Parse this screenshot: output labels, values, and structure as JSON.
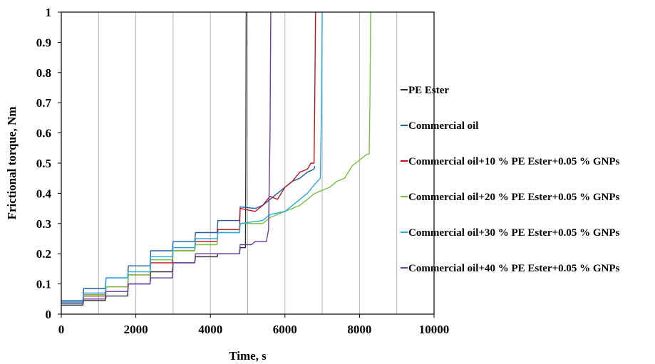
{
  "chart_data": {
    "type": "line",
    "title": "",
    "xlabel": "Time, s",
    "ylabel": "Frictional torque, Nm",
    "xlim": [
      0,
      10000
    ],
    "ylim": [
      0,
      1
    ],
    "xticks": [
      0,
      2000,
      4000,
      6000,
      8000,
      10000
    ],
    "xtick_labels": [
      "0",
      "2000",
      "4000",
      "6000",
      "8000",
      "10000"
    ],
    "yticks": [
      0,
      0.1,
      0.2,
      0.3,
      0.4,
      0.5,
      0.6,
      0.7,
      0.8,
      0.9,
      1
    ],
    "ytick_labels": [
      "0",
      "0.1",
      "0.2",
      "0.3",
      "0.4",
      "0.5",
      "0.6",
      "0.7",
      "0.8",
      "0.9",
      "1"
    ],
    "grid": "vertical",
    "legend_position": "right",
    "series": [
      {
        "name": "PE Ester",
        "color": "#2b2b2b",
        "x": [
          0,
          580,
          600,
          1180,
          1200,
          1780,
          1800,
          2380,
          2400,
          2980,
          3000,
          3580,
          3600,
          4180,
          4200,
          4780,
          4800,
          4940,
          4950,
          4960
        ],
        "y": [
          0.03,
          0.03,
          0.045,
          0.045,
          0.06,
          0.06,
          0.1,
          0.1,
          0.14,
          0.14,
          0.17,
          0.17,
          0.19,
          0.19,
          0.2,
          0.2,
          0.22,
          0.22,
          0.5,
          1.0
        ]
      },
      {
        "name": "Commercial oil",
        "color": "#1f5fa8",
        "x": [
          0,
          580,
          600,
          1180,
          1200,
          1780,
          1800,
          2380,
          2400,
          2980,
          3000,
          3580,
          3600,
          4180,
          4200,
          4780,
          4800,
          5200,
          5400,
          5600,
          5800,
          6000,
          6200,
          6400,
          6600,
          6780,
          6800
        ],
        "y": [
          0.045,
          0.045,
          0.085,
          0.085,
          0.12,
          0.12,
          0.16,
          0.16,
          0.21,
          0.21,
          0.24,
          0.24,
          0.27,
          0.27,
          0.31,
          0.31,
          0.355,
          0.35,
          0.36,
          0.38,
          0.4,
          0.42,
          0.44,
          0.45,
          0.47,
          0.48,
          0.49
        ]
      },
      {
        "name": "Commercial oil+10 % PE Ester+0.05 % GNPs",
        "color": "#c0141c",
        "x": [
          0,
          580,
          600,
          1180,
          1200,
          1780,
          1800,
          2380,
          2400,
          2980,
          3000,
          3580,
          3600,
          4180,
          4200,
          4780,
          4800,
          5200,
          5400,
          5600,
          5800,
          6000,
          6200,
          6400,
          6600,
          6700,
          6780,
          6800,
          6820
        ],
        "y": [
          0.04,
          0.04,
          0.06,
          0.06,
          0.09,
          0.09,
          0.13,
          0.13,
          0.17,
          0.17,
          0.21,
          0.21,
          0.24,
          0.24,
          0.28,
          0.28,
          0.35,
          0.34,
          0.36,
          0.39,
          0.38,
          0.42,
          0.44,
          0.47,
          0.48,
          0.5,
          0.5,
          0.7,
          1.0
        ]
      },
      {
        "name": "Commercial oil+20 % PE Ester+0.05 % GNPs",
        "color": "#7ac043",
        "x": [
          0,
          580,
          600,
          1180,
          1200,
          1780,
          1800,
          2380,
          2400,
          2980,
          3000,
          3580,
          3600,
          4180,
          4200,
          4780,
          4800,
          5400,
          5600,
          6000,
          6400,
          6800,
          7000,
          7200,
          7400,
          7600,
          7800,
          8000,
          8200,
          8260,
          8280,
          8300
        ],
        "y": [
          0.04,
          0.04,
          0.065,
          0.065,
          0.09,
          0.09,
          0.13,
          0.13,
          0.18,
          0.18,
          0.21,
          0.21,
          0.23,
          0.23,
          0.27,
          0.27,
          0.3,
          0.3,
          0.32,
          0.34,
          0.36,
          0.4,
          0.41,
          0.42,
          0.44,
          0.45,
          0.49,
          0.51,
          0.53,
          0.53,
          0.7,
          1.0
        ]
      },
      {
        "name": "Commercial oil+30 % PE Ester+0.05 % GNPs",
        "color": "#2aa9e0",
        "x": [
          0,
          580,
          600,
          1180,
          1200,
          1780,
          1800,
          2380,
          2400,
          2980,
          3000,
          3580,
          3600,
          4180,
          4200,
          4780,
          4800,
          5400,
          5600,
          6000,
          6200,
          6400,
          6600,
          6800,
          6950,
          6980,
          7000
        ],
        "y": [
          0.04,
          0.04,
          0.07,
          0.07,
          0.12,
          0.12,
          0.14,
          0.14,
          0.19,
          0.19,
          0.22,
          0.22,
          0.25,
          0.25,
          0.27,
          0.27,
          0.3,
          0.31,
          0.33,
          0.34,
          0.36,
          0.38,
          0.4,
          0.43,
          0.45,
          0.7,
          1.0
        ]
      },
      {
        "name": "Commercial oil+40 % PE Ester+0.05 % GNPs",
        "color": "#6a3d9a",
        "x": [
          0,
          580,
          600,
          1180,
          1200,
          1780,
          1800,
          2380,
          2400,
          2980,
          3000,
          3580,
          3600,
          4180,
          4200,
          4780,
          4800,
          5100,
          5200,
          5500,
          5560,
          5600,
          5620
        ],
        "y": [
          0.035,
          0.035,
          0.05,
          0.05,
          0.075,
          0.075,
          0.1,
          0.1,
          0.12,
          0.12,
          0.17,
          0.17,
          0.2,
          0.2,
          0.2,
          0.2,
          0.23,
          0.23,
          0.24,
          0.24,
          0.28,
          0.6,
          1.0
        ]
      }
    ]
  }
}
